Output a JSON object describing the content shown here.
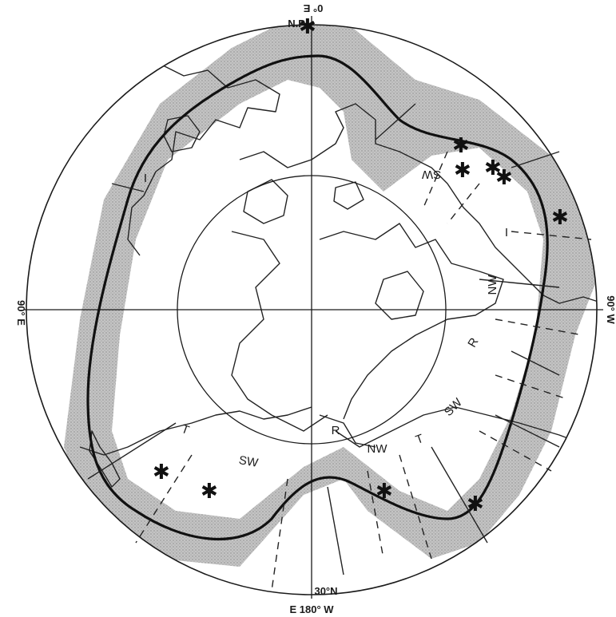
{
  "labels": {
    "top": "0° E",
    "bottom": "E 180° W",
    "left": "90° E",
    "right": "90° W",
    "lat30": "30°N",
    "pole": "N.P."
  },
  "zones": {
    "sw_ne": "SW",
    "i_ne": "I",
    "nw_e": "NW",
    "r_e": "R",
    "sw_se": "SW",
    "t_s": "T",
    "nw_s": "NW",
    "r_s": "R",
    "sw_s": "SW",
    "t_sw": "T",
    "i_w": "I"
  },
  "colors": {
    "shading": "#b8b8b8",
    "line": "#1a1a1a"
  }
}
